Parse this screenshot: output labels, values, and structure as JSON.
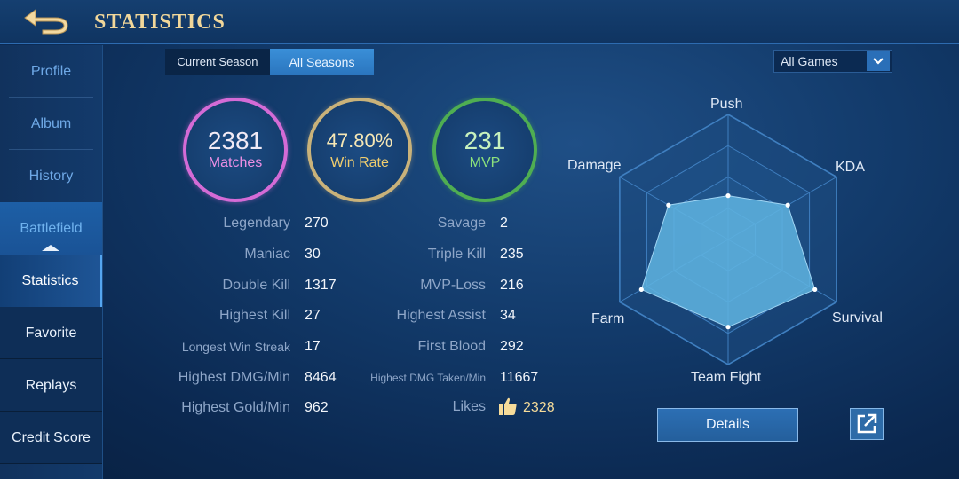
{
  "header": {
    "title": "STATISTICS",
    "back_icon": "back-arrow-icon"
  },
  "sidebar": {
    "items": [
      {
        "label": "Profile"
      },
      {
        "label": "Album"
      },
      {
        "label": "History"
      },
      {
        "label": "Battlefield"
      },
      {
        "label": "Statistics"
      },
      {
        "label": "Favorite"
      },
      {
        "label": "Replays"
      },
      {
        "label": "Credit Score"
      }
    ]
  },
  "tabs": {
    "current_season": "Current Season",
    "all_seasons": "All Seasons"
  },
  "filter": {
    "selected": "All Games"
  },
  "summary": {
    "matches": {
      "value": "2381",
      "label": "Matches"
    },
    "win_rate": {
      "value": "47.80%",
      "label": "Win Rate"
    },
    "mvp": {
      "value": "231",
      "label": "MVP"
    }
  },
  "stats_left": [
    {
      "label": "Legendary",
      "value": "270"
    },
    {
      "label": "Maniac",
      "value": "30"
    },
    {
      "label": "Double Kill",
      "value": "1317"
    },
    {
      "label": "Highest Kill",
      "value": "27"
    },
    {
      "label": "Longest Win Streak",
      "value": "17"
    },
    {
      "label": "Highest DMG/Min",
      "value": "8464"
    },
    {
      "label": "Highest Gold/Min",
      "value": "962"
    }
  ],
  "stats_right": [
    {
      "label": "Savage",
      "value": "2"
    },
    {
      "label": "Triple Kill",
      "value": "235"
    },
    {
      "label": "MVP-Loss",
      "value": "216"
    },
    {
      "label": "Highest Assist",
      "value": "34"
    },
    {
      "label": "First Blood",
      "value": "292"
    },
    {
      "label": "Highest DMG Taken/Min",
      "value": "11667"
    },
    {
      "label": "Likes",
      "value": "2328"
    }
  ],
  "radar": {
    "axes": [
      "Push",
      "KDA",
      "Survival",
      "Team Fight",
      "Farm",
      "Damage"
    ],
    "values": [
      0.35,
      0.55,
      0.8,
      0.7,
      0.8,
      0.55
    ]
  },
  "buttons": {
    "details": "Details",
    "share_icon": "external-link-icon"
  },
  "colors": {
    "matches_ring": "#d46bd6",
    "winrate_ring": "#c9b27a",
    "mvp_ring": "#4fae52",
    "header_title": "#f1d79a",
    "radar_fill": "#5fb4e0"
  }
}
